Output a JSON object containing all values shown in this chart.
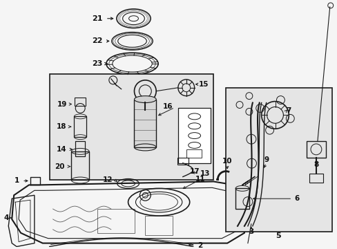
{
  "background_color": "#f0f0f0",
  "figsize": [
    4.89,
    3.6
  ],
  "dpi": 100,
  "line_color": "#1a1a1a",
  "text_color": "#111111",
  "box_fill": "#e8e8e8",
  "white": "#ffffff",
  "inner_fill": "#f8f8f8"
}
